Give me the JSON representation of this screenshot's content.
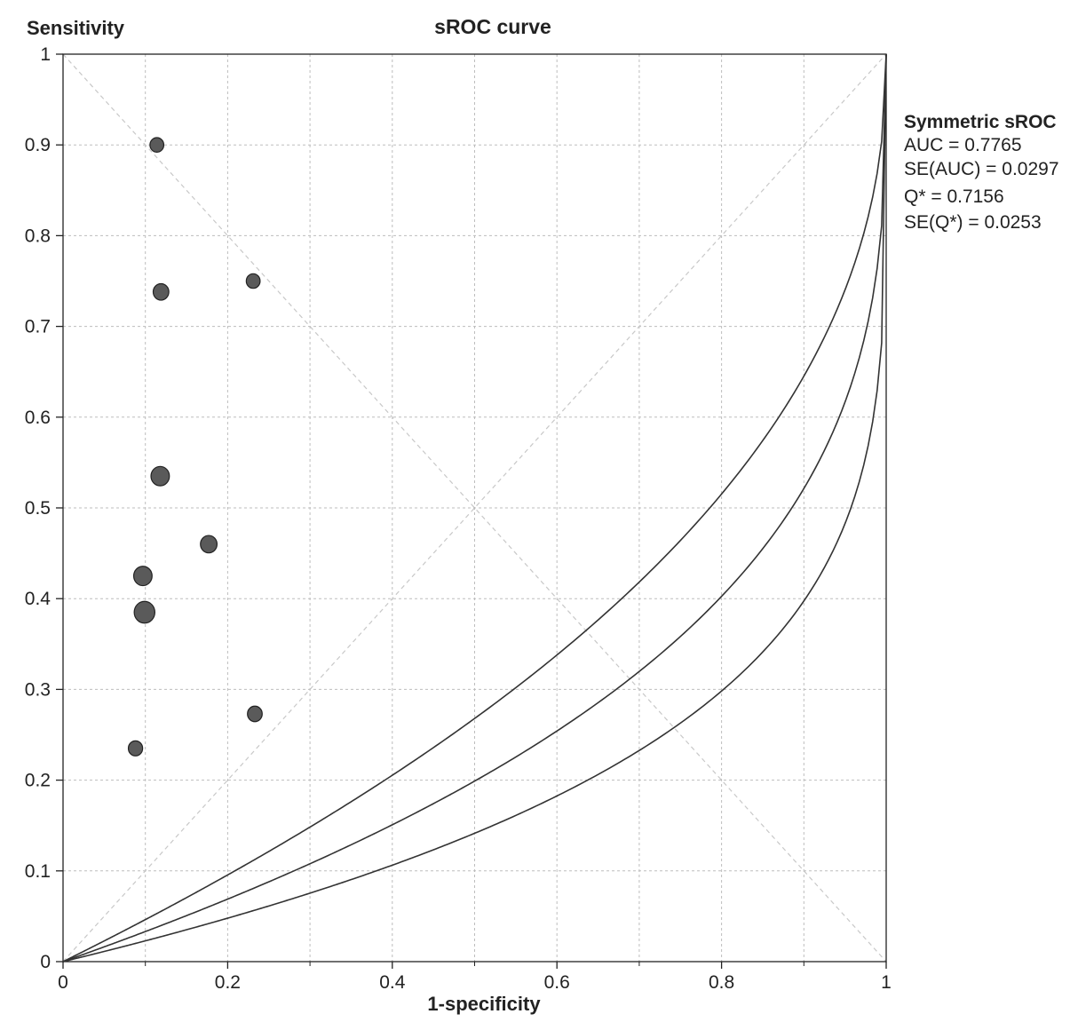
{
  "chart_data": {
    "type": "scatter",
    "title": "sROC curve",
    "xlabel": "1-specificity",
    "ylabel": "Sensitivity",
    "xlim": [
      0,
      1
    ],
    "ylim": [
      0,
      1
    ],
    "x_ticks": [
      "0",
      "0.2",
      "0.4",
      "0.6",
      "0.8",
      "1"
    ],
    "y_ticks": [
      "0",
      "0.1",
      "0.2",
      "0.3",
      "0.4",
      "0.5",
      "0.6",
      "0.7",
      "0.8",
      "0.9",
      "1"
    ],
    "grid": true,
    "points": [
      {
        "x": 0.114,
        "y": 0.9,
        "weight": 1.0
      },
      {
        "x": 0.119,
        "y": 0.738,
        "weight": 1.4
      },
      {
        "x": 0.231,
        "y": 0.75,
        "weight": 1.0
      },
      {
        "x": 0.118,
        "y": 0.535,
        "weight": 2.0
      },
      {
        "x": 0.177,
        "y": 0.46,
        "weight": 1.6
      },
      {
        "x": 0.097,
        "y": 0.425,
        "weight": 2.0
      },
      {
        "x": 0.099,
        "y": 0.385,
        "weight": 2.5
      },
      {
        "x": 0.233,
        "y": 0.273,
        "weight": 1.2
      },
      {
        "x": 0.088,
        "y": 0.235,
        "weight": 1.1
      }
    ],
    "curves": [
      {
        "role": "upper-bound",
        "dor_exponent": 0.22
      },
      {
        "role": "symmetric-sroc",
        "dor_exponent": 0.32
      },
      {
        "role": "lower-bound",
        "dor_exponent": 0.45
      }
    ],
    "reference_lines": [
      "diagonal",
      "anti-diagonal"
    ]
  },
  "stats": {
    "title": "Symmetric sROC",
    "lines": [
      "AUC = 0.7765",
      "SE(AUC) = 0.0297",
      "Q* = 0.7156",
      "SE(Q*) = 0.0253"
    ]
  },
  "colors": {
    "curve": "#333333",
    "marker_fill": "#5a5a5a",
    "marker_stroke": "#222222",
    "grid": "#bdbdbd",
    "reference": "#c8c8c8",
    "axis": "#222222"
  }
}
